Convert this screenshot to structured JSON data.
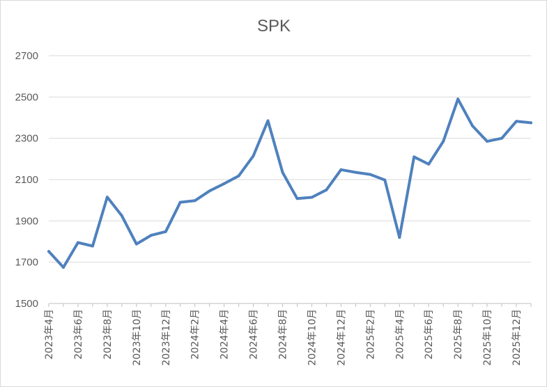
{
  "chart_data": {
    "type": "line",
    "title": "SPK",
    "xlabel": "",
    "ylabel": "",
    "ylim": [
      1500,
      2700
    ],
    "yticks": [
      1500,
      1700,
      1900,
      2100,
      2300,
      2500,
      2700
    ],
    "grid": true,
    "legend": "none",
    "series_color": "#4f81bd",
    "x_tick_labels": [
      "2023年4月",
      "2023年6月",
      "2023年8月",
      "2023年10月",
      "2023年12月",
      "2024年2月",
      "2024年4月",
      "2024年6月",
      "2024年8月",
      "2024年10月",
      "2024年12月",
      "2025年2月",
      "2025年4月",
      "2025年6月",
      "2025年8月",
      "2025年10月",
      "2025年12月"
    ],
    "x": [
      "2023-04",
      "2023-05",
      "2023-06",
      "2023-07",
      "2023-08",
      "2023-09",
      "2023-10",
      "2023-11",
      "2023-12",
      "2024-01",
      "2024-02",
      "2024-03",
      "2024-04",
      "2024-05",
      "2024-06",
      "2024-07",
      "2024-08",
      "2024-09",
      "2024-10",
      "2024-11",
      "2024-12",
      "2025-01",
      "2025-02",
      "2025-03",
      "2025-04",
      "2025-05",
      "2025-06",
      "2025-07",
      "2025-08",
      "2025-09",
      "2025-10",
      "2025-11",
      "2025-12",
      "2026-01"
    ],
    "series": [
      {
        "values": [
          1752,
          1675,
          1795,
          1778,
          2015,
          1925,
          1788,
          1830,
          1848,
          1990,
          1998,
          2045,
          2080,
          2118,
          2215,
          2385,
          2135,
          2008,
          2014,
          2050,
          2148,
          2135,
          2125,
          2098,
          1820,
          2210,
          2175,
          2285,
          2490,
          2360,
          2285,
          2300,
          2382,
          2375
        ]
      }
    ]
  }
}
